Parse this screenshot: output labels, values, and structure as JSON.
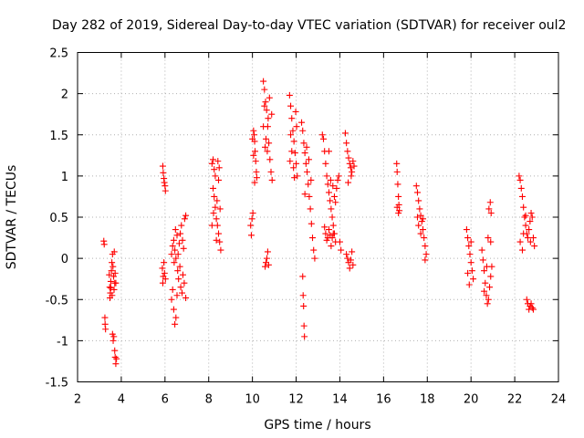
{
  "chart_data": {
    "type": "scatter",
    "title": "Day 282 of 2019, Sidereal Day-to-day VTEC variation (SDTVAR) for receiver oul2",
    "xlabel": "GPS time / hours",
    "ylabel": "SDTVAR / TECUs",
    "xlim": [
      2,
      24
    ],
    "ylim": [
      -1.5,
      2.5
    ],
    "xticks": [
      2,
      4,
      6,
      8,
      10,
      12,
      14,
      16,
      18,
      20,
      22,
      24
    ],
    "yticks": [
      -1.5,
      -1,
      -0.5,
      0,
      0.5,
      1,
      1.5,
      2,
      2.5
    ],
    "xtick_labels": [
      "2",
      "4",
      "6",
      "8",
      "10",
      "12",
      "14",
      "16",
      "18",
      "20",
      "22",
      "24"
    ],
    "ytick_labels": [
      "-1.5",
      "-1",
      "-0.5",
      "0",
      "0.5",
      "1",
      "1.5",
      "2",
      "2.5"
    ],
    "grid": true,
    "marker": "+",
    "marker_color": "#ff0000",
    "series": [
      {
        "name": "SDTVAR",
        "points": [
          [
            3.2,
            0.21
          ],
          [
            3.22,
            0.17
          ],
          [
            3.25,
            -0.72
          ],
          [
            3.26,
            -0.8
          ],
          [
            3.28,
            -0.86
          ],
          [
            3.45,
            -0.2
          ],
          [
            3.47,
            -0.35
          ],
          [
            3.48,
            -0.48
          ],
          [
            3.5,
            -0.42
          ],
          [
            3.52,
            -0.28
          ],
          [
            3.55,
            -0.15
          ],
          [
            3.57,
            -0.05
          ],
          [
            3.6,
            0.05
          ],
          [
            3.62,
            -0.1
          ],
          [
            3.65,
            -0.22
          ],
          [
            3.67,
            -0.38
          ],
          [
            3.7,
            -0.3
          ],
          [
            3.72,
            -0.18
          ],
          [
            3.75,
            -0.3
          ],
          [
            3.6,
            -0.92
          ],
          [
            3.63,
            -1.0
          ],
          [
            3.66,
            -0.95
          ],
          [
            3.7,
            -1.12
          ],
          [
            3.72,
            -1.2
          ],
          [
            3.75,
            -1.28
          ],
          [
            3.78,
            -1.22
          ],
          [
            3.68,
            0.08
          ],
          [
            3.58,
            -0.45
          ],
          [
            3.52,
            -0.36
          ],
          [
            5.9,
            1.12
          ],
          [
            5.92,
            1.04
          ],
          [
            5.95,
            0.97
          ],
          [
            5.97,
            0.92
          ],
          [
            6.0,
            0.88
          ],
          [
            6.02,
            0.82
          ],
          [
            5.88,
            -0.12
          ],
          [
            5.92,
            -0.22
          ],
          [
            5.95,
            -0.05
          ],
          [
            5.98,
            -0.18
          ],
          [
            6.02,
            -0.25
          ],
          [
            5.9,
            -0.3
          ],
          [
            6.3,
            -0.5
          ],
          [
            6.35,
            -0.38
          ],
          [
            6.4,
            -0.62
          ],
          [
            6.45,
            -0.8
          ],
          [
            6.5,
            -0.72
          ],
          [
            6.55,
            -0.45
          ],
          [
            6.3,
            0.05
          ],
          [
            6.35,
            0.15
          ],
          [
            6.4,
            0.22
          ],
          [
            6.45,
            0.1
          ],
          [
            6.5,
            0.0
          ],
          [
            6.55,
            0.28
          ],
          [
            6.6,
            0.05
          ],
          [
            6.65,
            0.18
          ],
          [
            6.7,
            0.3
          ],
          [
            6.75,
            0.4
          ],
          [
            6.8,
            0.22
          ],
          [
            6.85,
            0.12
          ],
          [
            6.9,
            0.48
          ],
          [
            6.95,
            0.52
          ],
          [
            6.62,
            -0.25
          ],
          [
            6.68,
            -0.1
          ],
          [
            6.72,
            -0.35
          ],
          [
            6.78,
            -0.42
          ],
          [
            6.82,
            -0.2
          ],
          [
            6.88,
            -0.3
          ],
          [
            6.95,
            -0.48
          ],
          [
            6.58,
            -0.15
          ],
          [
            6.42,
            -0.05
          ],
          [
            6.48,
            0.35
          ],
          [
            8.15,
            1.15
          ],
          [
            8.2,
            1.2
          ],
          [
            8.25,
            1.08
          ],
          [
            8.3,
            1.0
          ],
          [
            8.2,
            0.85
          ],
          [
            8.25,
            0.75
          ],
          [
            8.3,
            0.62
          ],
          [
            8.35,
            0.48
          ],
          [
            8.4,
            0.4
          ],
          [
            8.45,
            0.3
          ],
          [
            8.5,
            0.2
          ],
          [
            8.55,
            0.1
          ],
          [
            8.42,
            1.18
          ],
          [
            8.48,
            1.1
          ],
          [
            8.15,
            0.4
          ],
          [
            8.22,
            0.55
          ],
          [
            8.35,
            0.22
          ],
          [
            8.45,
            0.95
          ],
          [
            8.52,
            0.6
          ],
          [
            8.38,
            0.7
          ],
          [
            9.92,
            0.4
          ],
          [
            9.95,
            0.28
          ],
          [
            9.98,
            0.48
          ],
          [
            10.02,
            0.55
          ],
          [
            10.05,
            1.55
          ],
          [
            10.08,
            1.5
          ],
          [
            10.1,
            1.42
          ],
          [
            10.12,
            1.3
          ],
          [
            10.15,
            1.18
          ],
          [
            10.18,
            1.05
          ],
          [
            10.2,
            0.98
          ],
          [
            10.0,
            1.45
          ],
          [
            10.05,
            1.25
          ],
          [
            10.1,
            0.92
          ],
          [
            10.5,
            2.15
          ],
          [
            10.55,
            2.05
          ],
          [
            10.6,
            1.9
          ],
          [
            10.65,
            1.8
          ],
          [
            10.7,
            1.6
          ],
          [
            10.75,
            1.4
          ],
          [
            10.8,
            1.2
          ],
          [
            10.85,
            1.05
          ],
          [
            10.9,
            0.95
          ],
          [
            10.5,
            1.6
          ],
          [
            10.55,
            1.85
          ],
          [
            10.62,
            1.45
          ],
          [
            10.68,
            1.3
          ],
          [
            10.72,
            1.7
          ],
          [
            10.78,
            1.95
          ],
          [
            10.58,
            -0.1
          ],
          [
            10.62,
            -0.05
          ],
          [
            10.66,
            0.0
          ],
          [
            10.7,
            0.08
          ],
          [
            10.74,
            -0.08
          ],
          [
            10.58,
            1.35
          ],
          [
            10.88,
            1.75
          ],
          [
            11.7,
            1.98
          ],
          [
            11.75,
            1.85
          ],
          [
            11.8,
            1.7
          ],
          [
            11.85,
            1.55
          ],
          [
            11.9,
            1.42
          ],
          [
            11.95,
            1.28
          ],
          [
            12.0,
            1.15
          ],
          [
            12.05,
            1.0
          ],
          [
            11.75,
            1.5
          ],
          [
            11.8,
            1.3
          ],
          [
            11.88,
            1.1
          ],
          [
            11.92,
            0.98
          ],
          [
            12.02,
            1.6
          ],
          [
            11.72,
            1.18
          ],
          [
            11.98,
            1.78
          ],
          [
            12.25,
            1.65
          ],
          [
            12.3,
            1.55
          ],
          [
            12.35,
            1.4
          ],
          [
            12.4,
            1.28
          ],
          [
            12.45,
            1.15
          ],
          [
            12.5,
            1.05
          ],
          [
            12.55,
            0.9
          ],
          [
            12.6,
            0.75
          ],
          [
            12.65,
            0.6
          ],
          [
            12.7,
            0.42
          ],
          [
            12.75,
            0.25
          ],
          [
            12.8,
            0.1
          ],
          [
            12.85,
            0.0
          ],
          [
            12.4,
            0.78
          ],
          [
            12.48,
            1.35
          ],
          [
            12.58,
            1.2
          ],
          [
            12.68,
            0.95
          ],
          [
            12.3,
            -0.22
          ],
          [
            12.32,
            -0.45
          ],
          [
            12.34,
            -0.58
          ],
          [
            12.36,
            -0.82
          ],
          [
            12.38,
            -0.95
          ],
          [
            13.2,
            1.5
          ],
          [
            13.25,
            1.45
          ],
          [
            13.3,
            1.3
          ],
          [
            13.35,
            1.15
          ],
          [
            13.4,
            1.0
          ],
          [
            13.45,
            0.9
          ],
          [
            13.5,
            0.8
          ],
          [
            13.55,
            0.7
          ],
          [
            13.6,
            0.6
          ],
          [
            13.65,
            0.5
          ],
          [
            13.7,
            0.4
          ],
          [
            13.75,
            0.3
          ],
          [
            13.8,
            0.2
          ],
          [
            13.3,
            0.38
          ],
          [
            13.35,
            0.3
          ],
          [
            13.4,
            0.22
          ],
          [
            13.45,
            0.25
          ],
          [
            13.5,
            0.35
          ],
          [
            13.55,
            0.28
          ],
          [
            13.6,
            0.15
          ],
          [
            13.65,
            0.25
          ],
          [
            13.7,
            0.3
          ],
          [
            13.75,
            0.75
          ],
          [
            13.8,
            0.68
          ],
          [
            13.85,
            0.85
          ],
          [
            13.9,
            0.95
          ],
          [
            13.95,
            1.0
          ],
          [
            14.0,
            0.2
          ],
          [
            14.05,
            0.1
          ],
          [
            13.5,
            1.3
          ],
          [
            13.58,
            0.95
          ],
          [
            13.68,
            0.88
          ],
          [
            14.25,
            1.52
          ],
          [
            14.3,
            1.4
          ],
          [
            14.35,
            1.3
          ],
          [
            14.4,
            1.22
          ],
          [
            14.45,
            1.15
          ],
          [
            14.5,
            1.1
          ],
          [
            14.55,
            1.05
          ],
          [
            14.6,
            1.18
          ],
          [
            14.65,
            1.12
          ],
          [
            14.3,
            0.05
          ],
          [
            14.35,
            0.0
          ],
          [
            14.4,
            -0.05
          ],
          [
            14.45,
            -0.12
          ],
          [
            14.5,
            -0.02
          ],
          [
            14.55,
            0.08
          ],
          [
            14.6,
            -0.08
          ],
          [
            14.38,
            0.92
          ],
          [
            14.52,
            1.0
          ],
          [
            16.6,
            1.15
          ],
          [
            16.62,
            1.05
          ],
          [
            16.65,
            0.9
          ],
          [
            16.68,
            0.75
          ],
          [
            16.7,
            0.65
          ],
          [
            16.72,
            0.58
          ],
          [
            16.62,
            0.62
          ],
          [
            16.68,
            0.55
          ],
          [
            17.5,
            0.88
          ],
          [
            17.55,
            0.8
          ],
          [
            17.6,
            0.7
          ],
          [
            17.65,
            0.6
          ],
          [
            17.7,
            0.52
          ],
          [
            17.75,
            0.45
          ],
          [
            17.8,
            0.35
          ],
          [
            17.85,
            0.25
          ],
          [
            17.9,
            0.15
          ],
          [
            17.95,
            0.05
          ],
          [
            17.6,
            0.4
          ],
          [
            17.7,
            0.3
          ],
          [
            17.8,
            0.48
          ],
          [
            17.9,
            -0.02
          ],
          [
            17.55,
            0.5
          ],
          [
            19.8,
            0.35
          ],
          [
            19.85,
            0.25
          ],
          [
            19.9,
            0.15
          ],
          [
            19.95,
            0.05
          ],
          [
            20.0,
            -0.05
          ],
          [
            20.05,
            -0.15
          ],
          [
            20.1,
            -0.25
          ],
          [
            19.85,
            -0.18
          ],
          [
            19.92,
            -0.32
          ],
          [
            20.0,
            0.2
          ],
          [
            20.5,
            0.1
          ],
          [
            20.55,
            -0.02
          ],
          [
            20.6,
            -0.15
          ],
          [
            20.65,
            -0.3
          ],
          [
            20.7,
            -0.45
          ],
          [
            20.75,
            -0.55
          ],
          [
            20.8,
            -0.5
          ],
          [
            20.85,
            -0.35
          ],
          [
            20.9,
            -0.22
          ],
          [
            20.6,
            -0.4
          ],
          [
            20.72,
            -0.1
          ],
          [
            20.82,
            0.6
          ],
          [
            20.88,
            0.68
          ],
          [
            20.92,
            0.55
          ],
          [
            20.78,
            0.25
          ],
          [
            20.9,
            0.2
          ],
          [
            20.95,
            -0.1
          ],
          [
            22.2,
            1.0
          ],
          [
            22.25,
            0.95
          ],
          [
            22.3,
            0.85
          ],
          [
            22.35,
            0.75
          ],
          [
            22.4,
            0.62
          ],
          [
            22.45,
            0.5
          ],
          [
            22.5,
            0.4
          ],
          [
            22.55,
            0.3
          ],
          [
            22.6,
            0.25
          ],
          [
            22.65,
            0.35
          ],
          [
            22.7,
            0.45
          ],
          [
            22.75,
            0.55
          ],
          [
            22.8,
            0.5
          ],
          [
            22.85,
            0.25
          ],
          [
            22.9,
            0.15
          ],
          [
            22.25,
            0.2
          ],
          [
            22.35,
            0.1
          ],
          [
            22.4,
            0.3
          ],
          [
            22.55,
            -0.5
          ],
          [
            22.6,
            -0.55
          ],
          [
            22.65,
            -0.62
          ],
          [
            22.7,
            -0.58
          ],
          [
            22.75,
            -0.55
          ],
          [
            22.8,
            -0.6
          ],
          [
            22.85,
            -0.62
          ],
          [
            22.5,
            0.52
          ],
          [
            22.72,
            0.2
          ]
        ]
      }
    ]
  }
}
